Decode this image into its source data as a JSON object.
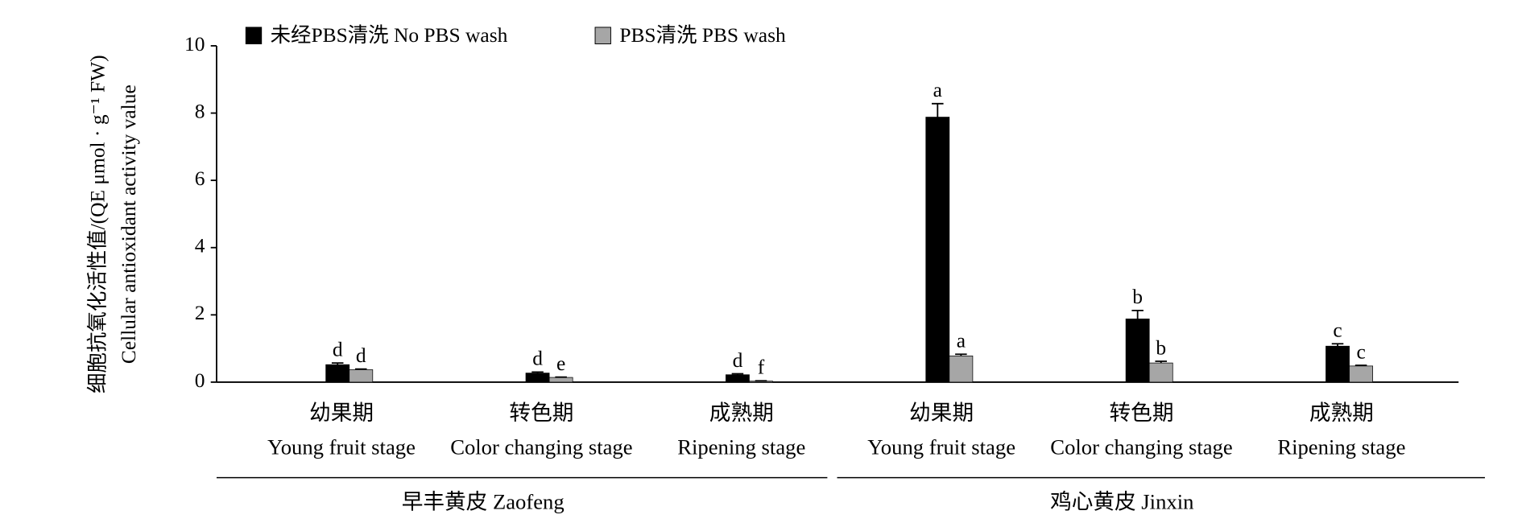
{
  "chart_data": {
    "type": "bar",
    "ylabel": [
      "细胞抗氧化活性值/(QE μmol · g⁻¹ FW)",
      "Cellular antioxidant activity value"
    ],
    "groups": [
      {
        "name": "早丰黄皮 Zaofeng",
        "categories": [
          [
            "幼果期",
            "Young fruit stage"
          ],
          [
            "转色期",
            "Color changing stage"
          ],
          [
            "成熟期",
            "Ripening stage"
          ]
        ]
      },
      {
        "name": "鸡心黄皮 Jinxin",
        "categories": [
          [
            "幼果期",
            "Young fruit stage"
          ],
          [
            "转色期",
            "Color changing stage"
          ],
          [
            "成熟期",
            "Ripening stage"
          ]
        ]
      }
    ],
    "series": [
      {
        "name": "未经PBS清洗 No PBS wash",
        "color": "#000000",
        "values": [
          0.52,
          0.27,
          0.22,
          7.88,
          1.88,
          1.07
        ],
        "errors": [
          0.05,
          0.03,
          0.03,
          0.4,
          0.25,
          0.07
        ],
        "letters": [
          "d",
          "d",
          "d",
          "a",
          "b",
          "c"
        ]
      },
      {
        "name": "PBS清洗 PBS wash",
        "color": "#a6a6a6",
        "values": [
          0.37,
          0.14,
          0.03,
          0.78,
          0.57,
          0.48
        ],
        "errors": [
          0.02,
          0.01,
          0.01,
          0.05,
          0.05,
          0.02
        ],
        "letters": [
          "d",
          "e",
          "f",
          "a",
          "b",
          "c"
        ]
      }
    ],
    "ylim": [
      0,
      10
    ],
    "yticks": [
      0,
      2,
      4,
      6,
      8,
      10
    ]
  }
}
